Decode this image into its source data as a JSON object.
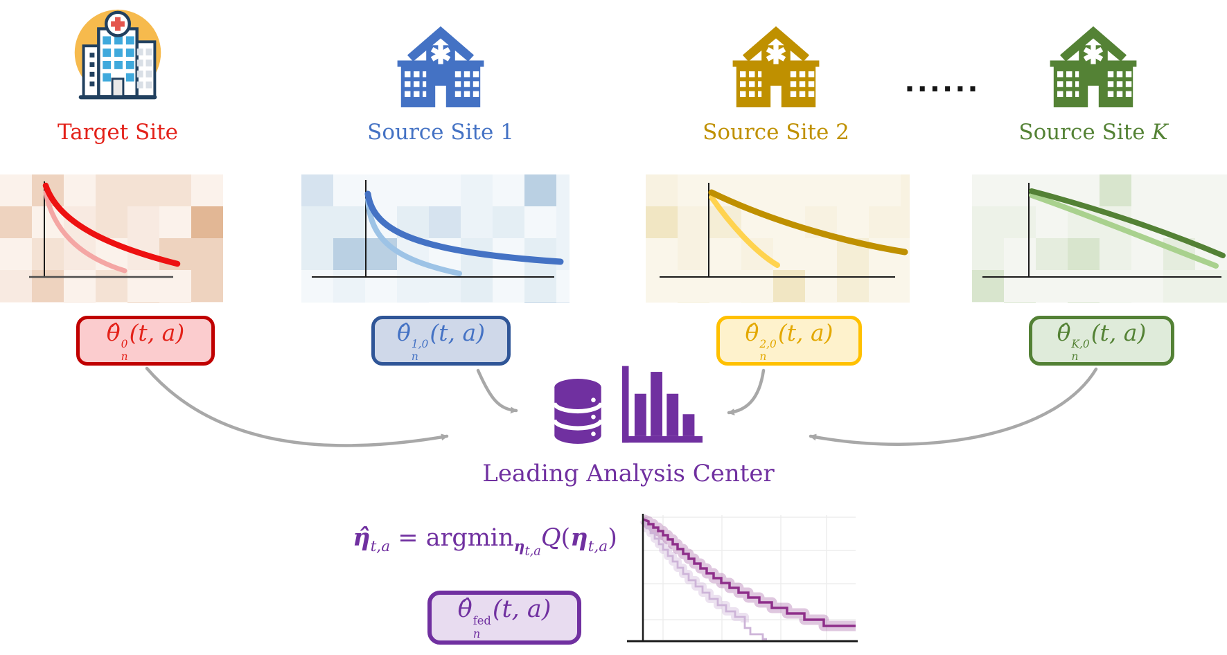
{
  "sites": [
    {
      "id": "target",
      "label": "Target Site",
      "label_var": "",
      "label_color": "#E32119",
      "icon_colors": {
        "circle": "#F6BA4D",
        "outline": "#21405F",
        "windows": "#3FA9DC",
        "cross": "#E4564E",
        "door": "#E9E9E9",
        "right_windows": "#D9DFE6"
      },
      "panel": {
        "base": "#FBF2EB",
        "tint": "#C97B40",
        "axis_v": "#1A1A1A",
        "axis_h": "#4D4D4D",
        "curve_main": "#ED1111",
        "curve_light": "#F4A6A4"
      },
      "estimate": {
        "base": "θ̂",
        "sup": "0",
        "sub": "n",
        "args": "(t, a)"
      },
      "box": {
        "border": "#C00000",
        "fill": "#FBCCCE",
        "text": "#E32119"
      }
    },
    {
      "id": "source-1",
      "label": "Source Site 1",
      "label_var": "",
      "label_color": "#4472C4",
      "icon_colors": {
        "building": "#4472C4"
      },
      "panel": {
        "base": "#F4F8FB",
        "tint": "#7FA7CB",
        "axis_v": "#1A1A1A",
        "axis_h": "#1A1A1A",
        "curve_main": "#4472C4",
        "curve_light": "#9DC3E6"
      },
      "estimate": {
        "base": "θ̂",
        "sup": "1,0",
        "sub": "n",
        "args": "(t, a)"
      },
      "box": {
        "border": "#2F5597",
        "fill": "#CFD8E9",
        "text": "#4472C4"
      }
    },
    {
      "id": "source-2",
      "label": "Source Site 2",
      "label_var": "",
      "label_color": "#BF9000",
      "icon_colors": {
        "building": "#BF9000"
      },
      "panel": {
        "base": "#FAF6EA",
        "tint": "#D9B856",
        "axis_v": "#1A1A1A",
        "axis_h": "#1A1A1A",
        "curve_main": "#BF9000",
        "curve_light": "#FFD34F"
      },
      "estimate": {
        "base": "θ̂",
        "sup": "2,0",
        "sub": "n",
        "args": "(t, a)"
      },
      "box": {
        "border": "#FFC000",
        "fill": "#FEF2CC",
        "text": "#E3A800"
      }
    },
    {
      "id": "source-k",
      "label": "Source Site ",
      "label_var": "K",
      "label_color": "#548235",
      "icon_colors": {
        "building": "#548235"
      },
      "panel": {
        "base": "#F4F6F1",
        "tint": "#86B468",
        "axis_v": "#1A1A1A",
        "axis_h": "#1A1A1A",
        "curve_main": "#538135",
        "curve_light": "#A9D18E"
      },
      "estimate": {
        "base": "θ̂",
        "sup": "K,0",
        "sub": "n",
        "args": "(t, a)"
      },
      "box": {
        "border": "#538135",
        "fill": "#DFEBDA",
        "text": "#548235"
      }
    }
  ],
  "ellipsis": "......",
  "center": {
    "title": "Leading Analysis Center",
    "color": "#7030A0",
    "icon_color": "#7030A0",
    "icons": [
      "database-icon",
      "bar-chart-icon"
    ]
  },
  "formula": {
    "color": "#7030A0",
    "eta_hat": "η̂",
    "sub_ta": "t,a",
    "equals": " = ",
    "argmin": "argmin",
    "eta": "η",
    "q": "Q",
    "open": "(",
    "close": ")"
  },
  "fed_box": {
    "estimate": {
      "base": "θ̂",
      "sup": "fed",
      "sub": "n",
      "args": "(t, a)"
    },
    "border": "#7030A0",
    "fill": "#E8DCF0",
    "text": "#7030A0"
  },
  "km_plot": {
    "line_dark": "#8E2F8A",
    "band_dark": "rgba(150,70,150,0.30)",
    "line_light": "#CDB4D8",
    "band_light": "rgba(205,180,216,0.38)",
    "axis": "#1A1A1A",
    "grid": "#EDEDED"
  },
  "arrow_color": "#A8A8A8"
}
